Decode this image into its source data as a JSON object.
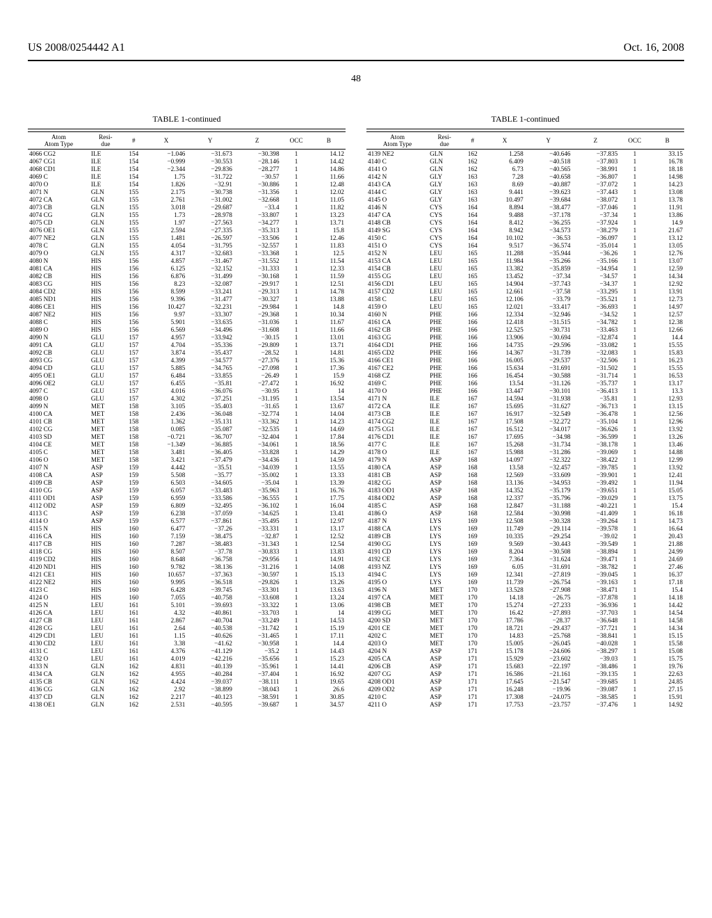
{
  "header": {
    "patent_no": "US 2008/0254442 A1",
    "date": "Oct. 16, 2008",
    "page_num": "48"
  },
  "table_title": "TABLE 1-continued",
  "columnHeaders": {
    "atom": "Atom",
    "atomType": "Atom Type",
    "residue": "Resi-\ndue",
    "num": "#",
    "X": "X",
    "Y": "Y",
    "Z": "Z",
    "OCC": "OCC",
    "B": "B"
  },
  "leftRows": [
    [
      "4066 CG2",
      "ILE",
      "154",
      "−1.046",
      "−31.673",
      "−30.398",
      "1",
      "14.12"
    ],
    [
      "4067 CG1",
      "ILE",
      "154",
      "−0.999",
      "−30.553",
      "−28.146",
      "1",
      "14.42"
    ],
    [
      "4068 CD1",
      "ILE",
      "154",
      "−2.344",
      "−29.836",
      "−28.277",
      "1",
      "14.86"
    ],
    [
      "4069 C",
      "ILE",
      "154",
      "1.75",
      "−31.722",
      "−30.57",
      "1",
      "11.66"
    ],
    [
      "4070 O",
      "ILE",
      "154",
      "1.826",
      "−32.91",
      "−30.886",
      "1",
      "12.48"
    ],
    [
      "4071 N",
      "GLN",
      "155",
      "2.175",
      "−30.738",
      "−31.356",
      "1",
      "12.02"
    ],
    [
      "4072 CA",
      "GLN",
      "155",
      "2.761",
      "−31.002",
      "−32.668",
      "1",
      "11.05"
    ],
    [
      "4073 CB",
      "GLN",
      "155",
      "3.018",
      "−29.687",
      "−33.4",
      "1",
      "11.82"
    ],
    [
      "4074 CG",
      "GLN",
      "155",
      "1.73",
      "−28.978",
      "−33.807",
      "1",
      "13.23"
    ],
    [
      "4075 CD",
      "GLN",
      "155",
      "1.97",
      "−27.563",
      "−34.277",
      "1",
      "13.71"
    ],
    [
      "4076 OE1",
      "GLN",
      "155",
      "2.594",
      "−27.335",
      "−35.313",
      "1",
      "15.8"
    ],
    [
      "4077 NE2",
      "GLN",
      "155",
      "1.481",
      "−26.597",
      "−33.506",
      "1",
      "12.46"
    ],
    [
      "4078 C",
      "GLN",
      "155",
      "4.054",
      "−31.795",
      "−32.557",
      "1",
      "11.83"
    ],
    [
      "4079 O",
      "GLN",
      "155",
      "4.317",
      "−32.683",
      "−33.368",
      "1",
      "12.5"
    ],
    [
      "4080 N",
      "HIS",
      "156",
      "4.857",
      "−31.467",
      "−31.552",
      "1",
      "11.54"
    ],
    [
      "4081 CA",
      "HIS",
      "156",
      "6.125",
      "−32.152",
      "−31.333",
      "1",
      "12.33"
    ],
    [
      "4082 CB",
      "HIS",
      "156",
      "6.876",
      "−31.499",
      "−30.168",
      "1",
      "11.59"
    ],
    [
      "4083 CG",
      "HIS",
      "156",
      "8.23",
      "−32.087",
      "−29.917",
      "1",
      "12.51"
    ],
    [
      "4084 CD2",
      "HIS",
      "156",
      "8.599",
      "−33.241",
      "−29.313",
      "1",
      "14.78"
    ],
    [
      "4085 ND1",
      "HIS",
      "156",
      "9.396",
      "−31.477",
      "−30.327",
      "1",
      "13.88"
    ],
    [
      "4086 CE1",
      "HIS",
      "156",
      "10.427",
      "−32.231",
      "−29.984",
      "1",
      "14.8"
    ],
    [
      "4087 NE2",
      "HIS",
      "156",
      "9.97",
      "−33.307",
      "−29.368",
      "1",
      "10.34"
    ],
    [
      "4088 C",
      "HIS",
      "156",
      "5.901",
      "−33.635",
      "−31.036",
      "1",
      "11.67"
    ],
    [
      "4089 O",
      "HIS",
      "156",
      "6.569",
      "−34.496",
      "−31.608",
      "1",
      "11.66"
    ],
    [
      "4090 N",
      "GLU",
      "157",
      "4.957",
      "−33.942",
      "−30.15",
      "1",
      "13.01"
    ],
    [
      "4091 CA",
      "GLU",
      "157",
      "4.704",
      "−35.336",
      "−29.809",
      "1",
      "13.71"
    ],
    [
      "4092 CB",
      "GLU",
      "157",
      "3.874",
      "−35.437",
      "−28.52",
      "1",
      "14.81"
    ],
    [
      "4093 CG",
      "GLU",
      "157",
      "4.399",
      "−34.577",
      "−27.376",
      "1",
      "15.36"
    ],
    [
      "4094 CD",
      "GLU",
      "157",
      "5.885",
      "−34.765",
      "−27.098",
      "1",
      "17.36"
    ],
    [
      "4095 OE1",
      "GLU",
      "157",
      "6.484",
      "−33.855",
      "−26.49",
      "1",
      "15.9"
    ],
    [
      "4096 OE2",
      "GLU",
      "157",
      "6.455",
      "−35.81",
      "−27.472",
      "1",
      "16.92"
    ],
    [
      "4097 C",
      "GLU",
      "157",
      "4.016",
      "−36.076",
      "−30.95",
      "1",
      "14"
    ],
    [
      "4098 O",
      "GLU",
      "157",
      "4.302",
      "−37.251",
      "−31.195",
      "1",
      "13.54"
    ],
    [
      "4099 N",
      "MET",
      "158",
      "3.105",
      "−35.403",
      "−31.65",
      "1",
      "13.67"
    ],
    [
      "4100 CA",
      "MET",
      "158",
      "2.436",
      "−36.048",
      "−32.774",
      "1",
      "14.04"
    ],
    [
      "4101 CB",
      "MET",
      "158",
      "1.362",
      "−35.131",
      "−33.362",
      "1",
      "14.23"
    ],
    [
      "4102 CG",
      "MET",
      "158",
      "0.085",
      "−35.087",
      "−32.535",
      "1",
      "14.69"
    ],
    [
      "4103 SD",
      "MET",
      "158",
      "−0.721",
      "−36.707",
      "−32.404",
      "1",
      "17.84"
    ],
    [
      "4104 CE",
      "MET",
      "158",
      "−1.349",
      "−36.885",
      "−34.061",
      "1",
      "18.56"
    ],
    [
      "4105 C",
      "MET",
      "158",
      "3.481",
      "−36.405",
      "−33.828",
      "1",
      "14.29"
    ],
    [
      "4106 O",
      "MET",
      "158",
      "3.421",
      "−37.479",
      "−34.436",
      "1",
      "14.59"
    ],
    [
      "4107 N",
      "ASP",
      "159",
      "4.442",
      "−35.51",
      "−34.039",
      "1",
      "13.55"
    ],
    [
      "4108 CA",
      "ASP",
      "159",
      "5.508",
      "−35.77",
      "−35.002",
      "1",
      "13.33"
    ],
    [
      "4109 CB",
      "ASP",
      "159",
      "6.503",
      "−34.605",
      "−35.04",
      "1",
      "13.39"
    ],
    [
      "4110 CG",
      "ASP",
      "159",
      "6.057",
      "−33.483",
      "−35.963",
      "1",
      "16.76"
    ],
    [
      "4111 OD1",
      "ASP",
      "159",
      "6.959",
      "−33.586",
      "−36.555",
      "1",
      "17.75"
    ],
    [
      "4112 OD2",
      "ASP",
      "159",
      "6.809",
      "−32.495",
      "−36.102",
      "1",
      "16.04"
    ],
    [
      "4113 C",
      "ASP",
      "159",
      "6.238",
      "−37.059",
      "−34.625",
      "1",
      "13.41"
    ],
    [
      "4114 O",
      "ASP",
      "159",
      "6.577",
      "−37.861",
      "−35.495",
      "1",
      "12.97"
    ],
    [
      "4115 N",
      "HIS",
      "160",
      "6.477",
      "−37.26",
      "−33.331",
      "1",
      "13.17"
    ],
    [
      "4116 CA",
      "HIS",
      "160",
      "7.159",
      "−38.475",
      "−32.87",
      "1",
      "12.52"
    ],
    [
      "4117 CB",
      "HIS",
      "160",
      "7.287",
      "−38.483",
      "−31.343",
      "1",
      "12.54"
    ],
    [
      "4118 CG",
      "HIS",
      "160",
      "8.507",
      "−37.78",
      "−30.833",
      "1",
      "13.83"
    ],
    [
      "4119 CD2",
      "HIS",
      "160",
      "8.648",
      "−36.758",
      "−29.956",
      "1",
      "14.91"
    ],
    [
      "4120 ND1",
      "HIS",
      "160",
      "9.782",
      "−38.136",
      "−31.216",
      "1",
      "14.08"
    ],
    [
      "4121 CE1",
      "HIS",
      "160",
      "10.657",
      "−37.363",
      "−30.597",
      "1",
      "15.13"
    ],
    [
      "4122 NE2",
      "HIS",
      "160",
      "9.995",
      "−36.518",
      "−29.826",
      "1",
      "13.26"
    ],
    [
      "4123 C",
      "HIS",
      "160",
      "6.428",
      "−39.745",
      "−33.301",
      "1",
      "13.63"
    ],
    [
      "4124 O",
      "HIS",
      "160",
      "7.055",
      "−40.758",
      "−33.608",
      "1",
      "13.24"
    ],
    [
      "4125 N",
      "LEU",
      "161",
      "5.101",
      "−39.693",
      "−33.322",
      "1",
      "13.06"
    ],
    [
      "4126 CA",
      "LEU",
      "161",
      "4.32",
      "−40.861",
      "−33.703",
      "1",
      "14"
    ],
    [
      "4127 CB",
      "LEU",
      "161",
      "2.867",
      "−40.704",
      "−33.249",
      "1",
      "14.53"
    ],
    [
      "4128 CG",
      "LEU",
      "161",
      "2.64",
      "−40.538",
      "−31.742",
      "1",
      "15.19"
    ],
    [
      "4129 CD1",
      "LEU",
      "161",
      "1.15",
      "−40.626",
      "−31.465",
      "1",
      "17.11"
    ],
    [
      "4130 CD2",
      "LEU",
      "161",
      "3.38",
      "−41.62",
      "−30.958",
      "1",
      "14.4"
    ],
    [
      "4131 C",
      "LEU",
      "161",
      "4.376",
      "−41.129",
      "−35.2",
      "1",
      "14.43"
    ],
    [
      "4132 O",
      "LEU",
      "161",
      "4.019",
      "−42.216",
      "−35.656",
      "1",
      "15.23"
    ],
    [
      "4133 N",
      "GLN",
      "162",
      "4.831",
      "−40.139",
      "−35.961",
      "1",
      "14.41"
    ],
    [
      "4134 CA",
      "GLN",
      "162",
      "4.955",
      "−40.284",
      "−37.404",
      "1",
      "16.92"
    ],
    [
      "4135 CB",
      "GLN",
      "162",
      "4.424",
      "−39.037",
      "−38.111",
      "1",
      "19.65"
    ],
    [
      "4136 CG",
      "GLN",
      "162",
      "2.92",
      "−38.899",
      "−38.043",
      "1",
      "26.6"
    ],
    [
      "4137 CD",
      "GLN",
      "162",
      "2.217",
      "−40.123",
      "−38.591",
      "1",
      "30.85"
    ],
    [
      "4138 OE1",
      "GLN",
      "162",
      "2.531",
      "−40.595",
      "−39.687",
      "1",
      "34.57"
    ]
  ],
  "rightRows": [
    [
      "4139 NE2",
      "GLN",
      "162",
      "1.258",
      "−40.646",
      "−37.835",
      "1",
      "33.15"
    ],
    [
      "4140 C",
      "GLN",
      "162",
      "6.409",
      "−40.518",
      "−37.803",
      "1",
      "16.78"
    ],
    [
      "4141 O",
      "GLN",
      "162",
      "6.73",
      "−40.565",
      "−38.991",
      "1",
      "18.18"
    ],
    [
      "4142 N",
      "GLY",
      "163",
      "7.28",
      "−40.658",
      "−36.807",
      "1",
      "14.98"
    ],
    [
      "4143 CA",
      "GLY",
      "163",
      "8.69",
      "−40.887",
      "−37.072",
      "1",
      "14.23"
    ],
    [
      "4144 C",
      "GLY",
      "163",
      "9.441",
      "−39.623",
      "−37.443",
      "1",
      "13.08"
    ],
    [
      "4145 O",
      "GLY",
      "163",
      "10.497",
      "−39.684",
      "−38.072",
      "1",
      "13.78"
    ],
    [
      "4146 N",
      "CYS",
      "164",
      "8.894",
      "−38.477",
      "−37.046",
      "1",
      "11.91"
    ],
    [
      "4147 CA",
      "CYS",
      "164",
      "9.488",
      "−37.178",
      "−37.34",
      "1",
      "13.86"
    ],
    [
      "4148 CB",
      "CYS",
      "164",
      "8.412",
      "−36.255",
      "−37.924",
      "1",
      "14.9"
    ],
    [
      "4149 SG",
      "CYS",
      "164",
      "8.942",
      "−34.573",
      "−38.279",
      "1",
      "21.67"
    ],
    [
      "4150 C",
      "CYS",
      "164",
      "10.102",
      "−36.53",
      "−36.097",
      "1",
      "13.12"
    ],
    [
      "4151 O",
      "CYS",
      "164",
      "9.517",
      "−36.574",
      "−35.014",
      "1",
      "13.05"
    ],
    [
      "4152 N",
      "LEU",
      "165",
      "11.288",
      "−35.944",
      "−36.26",
      "1",
      "12.76"
    ],
    [
      "4153 CA",
      "LEU",
      "165",
      "11.984",
      "−35.266",
      "−35.166",
      "1",
      "13.07"
    ],
    [
      "4154 CB",
      "LEU",
      "165",
      "13.382",
      "−35.859",
      "−34.954",
      "1",
      "12.59"
    ],
    [
      "4155 CG",
      "LEU",
      "165",
      "13.452",
      "−37.34",
      "−34.57",
      "1",
      "14.34"
    ],
    [
      "4156 CD1",
      "LEU",
      "165",
      "14.904",
      "−37.743",
      "−34.37",
      "1",
      "12.92"
    ],
    [
      "4157 CD2",
      "LEU",
      "165",
      "12.661",
      "−37.58",
      "−33.295",
      "1",
      "13.91"
    ],
    [
      "4158 C",
      "LEU",
      "165",
      "12.106",
      "−33.79",
      "−35.521",
      "1",
      "12.73"
    ],
    [
      "4159 O",
      "LEU",
      "165",
      "12.021",
      "−33.417",
      "−36.693",
      "1",
      "14.97"
    ],
    [
      "4160 N",
      "PHE",
      "166",
      "12.334",
      "−32.946",
      "−34.52",
      "1",
      "12.57"
    ],
    [
      "4161 CA",
      "PHE",
      "166",
      "12.418",
      "−31.515",
      "−34.782",
      "1",
      "12.38"
    ],
    [
      "4162 CB",
      "PHE",
      "166",
      "12.525",
      "−30.731",
      "−33.463",
      "1",
      "12.66"
    ],
    [
      "4163 CG",
      "PHE",
      "166",
      "13.906",
      "−30.694",
      "−32.874",
      "1",
      "14.4"
    ],
    [
      "4164 CD1",
      "PHE",
      "166",
      "14.735",
      "−29.596",
      "−33.082",
      "1",
      "15.55"
    ],
    [
      "4165 CD2",
      "PHE",
      "166",
      "14.367",
      "−31.739",
      "−32.083",
      "1",
      "15.83"
    ],
    [
      "4166 CE1",
      "PHE",
      "166",
      "16.005",
      "−29.537",
      "−32.506",
      "1",
      "16.23"
    ],
    [
      "4167 CE2",
      "PHE",
      "166",
      "15.634",
      "−31.691",
      "−31.502",
      "1",
      "15.55"
    ],
    [
      "4168 CZ",
      "PHE",
      "166",
      "16.454",
      "−30.588",
      "−31.714",
      "1",
      "16.53"
    ],
    [
      "4169 C",
      "PHE",
      "166",
      "13.54",
      "−31.126",
      "−35.737",
      "1",
      "13.17"
    ],
    [
      "4170 O",
      "PHE",
      "166",
      "13.447",
      "−30.101",
      "−36.413",
      "1",
      "13.3"
    ],
    [
      "4171 N",
      "ILE",
      "167",
      "14.594",
      "−31.938",
      "−35.81",
      "1",
      "12.93"
    ],
    [
      "4172 CA",
      "ILE",
      "167",
      "15.695",
      "−31.627",
      "−36.713",
      "1",
      "13.15"
    ],
    [
      "4173 CB",
      "ILE",
      "167",
      "16.917",
      "−32.549",
      "−36.478",
      "1",
      "12.56"
    ],
    [
      "4174 CG2",
      "ILE",
      "167",
      "17.508",
      "−32.272",
      "−35.104",
      "1",
      "12.96"
    ],
    [
      "4175 CG1",
      "ILE",
      "167",
      "16.512",
      "−34.017",
      "−36.626",
      "1",
      "13.92"
    ],
    [
      "4176 CD1",
      "ILE",
      "167",
      "17.695",
      "−34.98",
      "−36.599",
      "1",
      "13.26"
    ],
    [
      "4177 C",
      "ILE",
      "167",
      "15.268",
      "−31.734",
      "−38.178",
      "1",
      "13.46"
    ],
    [
      "4178 O",
      "ILE",
      "167",
      "15.988",
      "−31.286",
      "−39.069",
      "1",
      "14.88"
    ],
    [
      "4179 N",
      "ASP",
      "168",
      "14.097",
      "−32.322",
      "−38.422",
      "1",
      "12.99"
    ],
    [
      "4180 CA",
      "ASP",
      "168",
      "13.58",
      "−32.457",
      "−39.785",
      "1",
      "13.92"
    ],
    [
      "4181 CB",
      "ASP",
      "168",
      "12.569",
      "−33.609",
      "−39.901",
      "1",
      "12.41"
    ],
    [
      "4182 CG",
      "ASP",
      "168",
      "13.136",
      "−34.953",
      "−39.492",
      "1",
      "11.94"
    ],
    [
      "4183 OD1",
      "ASP",
      "168",
      "14.352",
      "−35.179",
      "−39.651",
      "1",
      "15.05"
    ],
    [
      "4184 OD2",
      "ASP",
      "168",
      "12.337",
      "−35.796",
      "−39.029",
      "1",
      "13.75"
    ],
    [
      "4185 C",
      "ASP",
      "168",
      "12.847",
      "−31.188",
      "−40.221",
      "1",
      "15.4"
    ],
    [
      "4186 O",
      "ASP",
      "168",
      "12.584",
      "−30.998",
      "−41.409",
      "1",
      "16.18"
    ],
    [
      "4187 N",
      "LYS",
      "169",
      "12.508",
      "−30.328",
      "−39.264",
      "1",
      "14.73"
    ],
    [
      "4188 CA",
      "LYS",
      "169",
      "11.749",
      "−29.114",
      "−39.578",
      "1",
      "16.64"
    ],
    [
      "4189 CB",
      "LYS",
      "169",
      "10.335",
      "−29.254",
      "−39.02",
      "1",
      "20.43"
    ],
    [
      "4190 CG",
      "LYS",
      "169",
      "9.569",
      "−30.443",
      "−39.549",
      "1",
      "21.88"
    ],
    [
      "4191 CD",
      "LYS",
      "169",
      "8.204",
      "−30.508",
      "−38.894",
      "1",
      "24.99"
    ],
    [
      "4192 CE",
      "LYS",
      "169",
      "7.364",
      "−31.624",
      "−39.471",
      "1",
      "24.69"
    ],
    [
      "4193 NZ",
      "LYS",
      "169",
      "6.05",
      "−31.691",
      "−38.782",
      "1",
      "27.46"
    ],
    [
      "4194 C",
      "LYS",
      "169",
      "12.341",
      "−27.819",
      "−39.045",
      "1",
      "16.37"
    ],
    [
      "4195 O",
      "LYS",
      "169",
      "11.739",
      "−26.754",
      "−39.163",
      "1",
      "17.18"
    ],
    [
      "4196 N",
      "MET",
      "170",
      "13.528",
      "−27.908",
      "−38.471",
      "1",
      "15.4"
    ],
    [
      "4197 CA",
      "MET",
      "170",
      "14.18",
      "−26.75",
      "−37.878",
      "1",
      "14.18"
    ],
    [
      "4198 CB",
      "MET",
      "170",
      "15.274",
      "−27.233",
      "−36.936",
      "1",
      "14.42"
    ],
    [
      "4199 CG",
      "MET",
      "170",
      "16.42",
      "−27.893",
      "−37.703",
      "1",
      "14.54"
    ],
    [
      "4200 SD",
      "MET",
      "170",
      "17.786",
      "−28.37",
      "−36.648",
      "1",
      "14.58"
    ],
    [
      "4201 CE",
      "MET",
      "170",
      "18.721",
      "−29.437",
      "−37.721",
      "1",
      "14.34"
    ],
    [
      "4202 C",
      "MET",
      "170",
      "14.83",
      "−25.768",
      "−38.841",
      "1",
      "15.15"
    ],
    [
      "4203 O",
      "MET",
      "170",
      "15.005",
      "−26.045",
      "−40.028",
      "1",
      "15.58"
    ],
    [
      "4204 N",
      "ASP",
      "171",
      "15.178",
      "−24.606",
      "−38.297",
      "1",
      "15.08"
    ],
    [
      "4205 CA",
      "ASP",
      "171",
      "15.929",
      "−23.602",
      "−39.03",
      "1",
      "15.75"
    ],
    [
      "4206 CB",
      "ASP",
      "171",
      "15.683",
      "−22.197",
      "−38.486",
      "1",
      "19.76"
    ],
    [
      "4207 CG",
      "ASP",
      "171",
      "16.586",
      "−21.161",
      "−39.135",
      "1",
      "22.63"
    ],
    [
      "4208 OD1",
      "ASP",
      "171",
      "17.645",
      "−21.547",
      "−39.685",
      "1",
      "24.85"
    ],
    [
      "4209 OD2",
      "ASP",
      "171",
      "16.248",
      "−19.96",
      "−39.087",
      "1",
      "27.15"
    ],
    [
      "4210 C",
      "ASP",
      "171",
      "17.308",
      "−24.075",
      "−38.585",
      "1",
      "15.91"
    ],
    [
      "4211 O",
      "ASP",
      "171",
      "17.753",
      "−23.757",
      "−37.476",
      "1",
      "14.92"
    ]
  ]
}
